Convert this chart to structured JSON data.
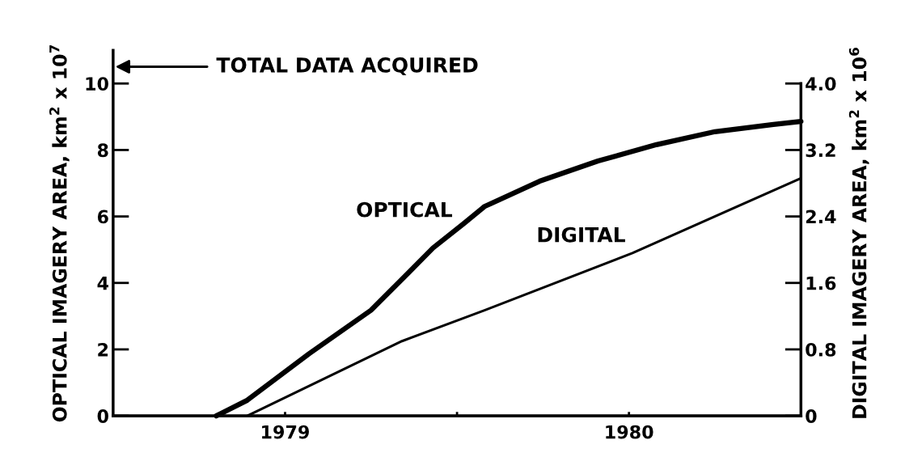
{
  "chart_data": {
    "type": "line",
    "xlabel": null,
    "ylabel": "OPTICAL IMAGERY AREA, km$^{2}$ x 10$^{7}$",
    "y2label": "DIGITAL IMAGERY AREA, km$^{2}$ x 10$^{6}$",
    "xlim": [
      1979,
      1981
    ],
    "xticks": [
      {
        "value": 1979.5,
        "label": "1979"
      },
      {
        "value": 1980,
        "label": null
      },
      {
        "value": 1980.5,
        "label": "1980"
      }
    ],
    "ylim": [
      0,
      11
    ],
    "yticks": [
      0,
      2,
      4,
      6,
      8,
      10
    ],
    "y2lim": [
      0,
      4.4
    ],
    "y2ticks": [
      0,
      0.8,
      1.6,
      2.4,
      3.2,
      {
        "value": 4,
        "label": "4.0"
      }
    ],
    "grid": false,
    "legend": false,
    "marker": "none",
    "line_style": "solid",
    "annotations": [
      "TOTAL DATA ACQUIRED"
    ],
    "series": [
      {
        "name": "OPTICAL",
        "color": "#000000",
        "x": [
          1979.3,
          1979.39,
          1979.57,
          1979.75,
          1979.84,
          1979.93,
          1980.02,
          1980.08,
          1980.24,
          1980.41,
          1980.58,
          1980.75,
          1980.92,
          1981.0
        ],
        "values": [
          0,
          0.47,
          1.87,
          3.18,
          4.11,
          5.05,
          5.79,
          6.3,
          7.06,
          7.67,
          8.16,
          8.55,
          8.77,
          8.86
        ]
      },
      {
        "name": "DIGITAL",
        "color": "#000000",
        "axis": "y2",
        "x": [
          1979.39,
          1979.84,
          1980.08,
          1980.51,
          1981.0
        ],
        "values": [
          0,
          0.9,
          1.27,
          1.96,
          2.86
        ]
      }
    ]
  }
}
